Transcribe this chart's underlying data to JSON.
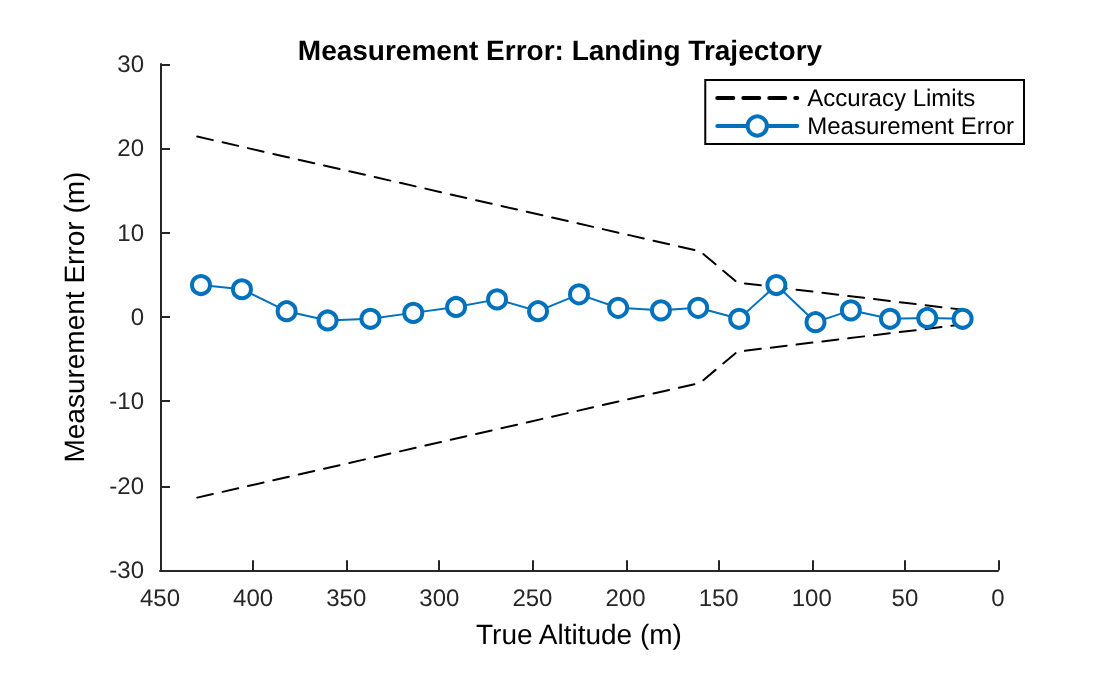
{
  "chart_data": {
    "type": "line",
    "title": "Measurement Error: Landing Trajectory",
    "xlabel": "True Altitude (m)",
    "ylabel": "Measurement Error (m)",
    "xlim": [
      450,
      0
    ],
    "xticks": [
      450,
      400,
      350,
      300,
      250,
      200,
      150,
      100,
      50,
      0
    ],
    "ylim": [
      -30,
      30
    ],
    "yticks": [
      -30,
      -20,
      -10,
      0,
      10,
      20,
      30
    ],
    "grid": false,
    "legend": "top right",
    "series": [
      {
        "name": "Accuracy Limits",
        "color": "#000000",
        "line_style": "dashed",
        "marker": "none",
        "x": [
          430,
          160,
          140,
          20
        ],
        "values": [
          21.4,
          7.8,
          4.1,
          0.9
        ]
      },
      {
        "color": "#000000",
        "line_style": "dashed",
        "marker": "none",
        "x": [
          430,
          160,
          140,
          20
        ],
        "values": [
          -21.4,
          -7.8,
          -4.1,
          -0.9
        ]
      },
      {
        "name": "Measurement Error",
        "color": "#0072bd",
        "line_style": "solid",
        "marker": "circle",
        "x": [
          428,
          406,
          382,
          360,
          337,
          314,
          291,
          269,
          247,
          225,
          204,
          181,
          161,
          139,
          119,
          98,
          79,
          58,
          38,
          19
        ],
        "values": [
          3.8,
          3.3,
          0.7,
          -0.4,
          -0.2,
          0.5,
          1.2,
          2.1,
          0.7,
          2.7,
          1.1,
          0.8,
          1.1,
          -0.2,
          3.8,
          -0.6,
          0.8,
          -0.2,
          -0.1,
          -0.2
        ]
      }
    ]
  }
}
